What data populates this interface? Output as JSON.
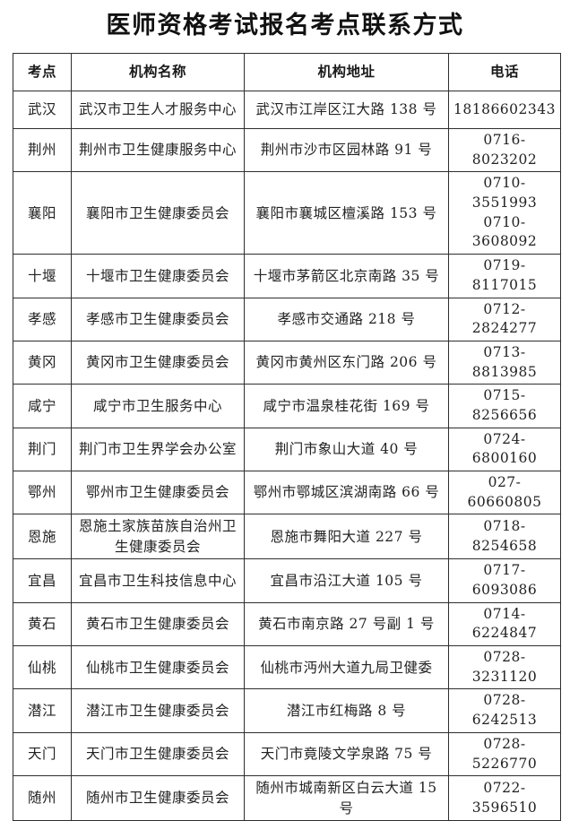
{
  "title": "医师资格考试报名考点联系方式",
  "table": {
    "headers": [
      "考点",
      "机构名称",
      "机构地址",
      "电话"
    ],
    "rows": [
      {
        "site": "武汉",
        "org": "武汉市卫生人才服务中心",
        "address": "武汉市江岸区江大路 138 号",
        "phones": [
          "18186602343"
        ]
      },
      {
        "site": "荆州",
        "org": "荆州市卫生健康服务中心",
        "address": "荆州市沙市区园林路 91 号",
        "phones": [
          "0716-8023202"
        ]
      },
      {
        "site": "襄阳",
        "org": "襄阳市卫生健康委员会",
        "address": "襄阳市襄城区檀溪路 153 号",
        "phones": [
          "0710-3551993",
          "0710-3608092"
        ]
      },
      {
        "site": "十堰",
        "org": "十堰市卫生健康委员会",
        "address": "十堰市茅箭区北京南路 35 号",
        "phones": [
          "0719-8117015"
        ]
      },
      {
        "site": "孝感",
        "org": "孝感市卫生健康委员会",
        "address": "孝感市交通路 218 号",
        "phones": [
          "0712-2824277"
        ]
      },
      {
        "site": "黄冈",
        "org": "黄冈市卫生健康委员会",
        "address": "黄冈市黄州区东门路 206 号",
        "phones": [
          "0713-8813985"
        ]
      },
      {
        "site": "咸宁",
        "org": "咸宁市卫生服务中心",
        "address": "咸宁市温泉桂花街 169 号",
        "phones": [
          "0715-8256656"
        ]
      },
      {
        "site": "荆门",
        "org": "荆门市卫生界学会办公室",
        "address": "荆门市象山大道 40 号",
        "phones": [
          "0724-6800160"
        ]
      },
      {
        "site": "鄂州",
        "org": "鄂州市卫生健康委员会",
        "address": "鄂州市鄂城区滨湖南路 66 号",
        "phones": [
          "027-60660805"
        ]
      },
      {
        "site": "恩施",
        "org": "恩施土家族苗族自治州卫生健康委员会",
        "address": "恩施市舞阳大道 227 号",
        "phones": [
          "0718-8254658"
        ]
      },
      {
        "site": "宜昌",
        "org": "宜昌市卫生科技信息中心",
        "address": "宜昌市沿江大道 105 号",
        "phones": [
          "0717-6093086"
        ]
      },
      {
        "site": "黄石",
        "org": "黄石市卫生健康委员会",
        "address": "黄石市南京路 27 号副 1 号",
        "phones": [
          "0714-6224847"
        ]
      },
      {
        "site": "仙桃",
        "org": "仙桃市卫生健康委员会",
        "address": "仙桃市沔州大道九局卫健委",
        "phones": [
          "0728-3231120"
        ]
      },
      {
        "site": "潜江",
        "org": "潜江市卫生健康委员会",
        "address": "潜江市红梅路 8 号",
        "phones": [
          "0728-6242513"
        ]
      },
      {
        "site": "天门",
        "org": "天门市卫生健康委员会",
        "address": "天门市竟陵文学泉路 75 号",
        "phones": [
          "0728-5226770"
        ]
      },
      {
        "site": "随州",
        "org": "随州市卫生健康委员会",
        "address": "随州市城南新区白云大道 15 号",
        "phones": [
          "0722-3596510"
        ]
      }
    ]
  }
}
